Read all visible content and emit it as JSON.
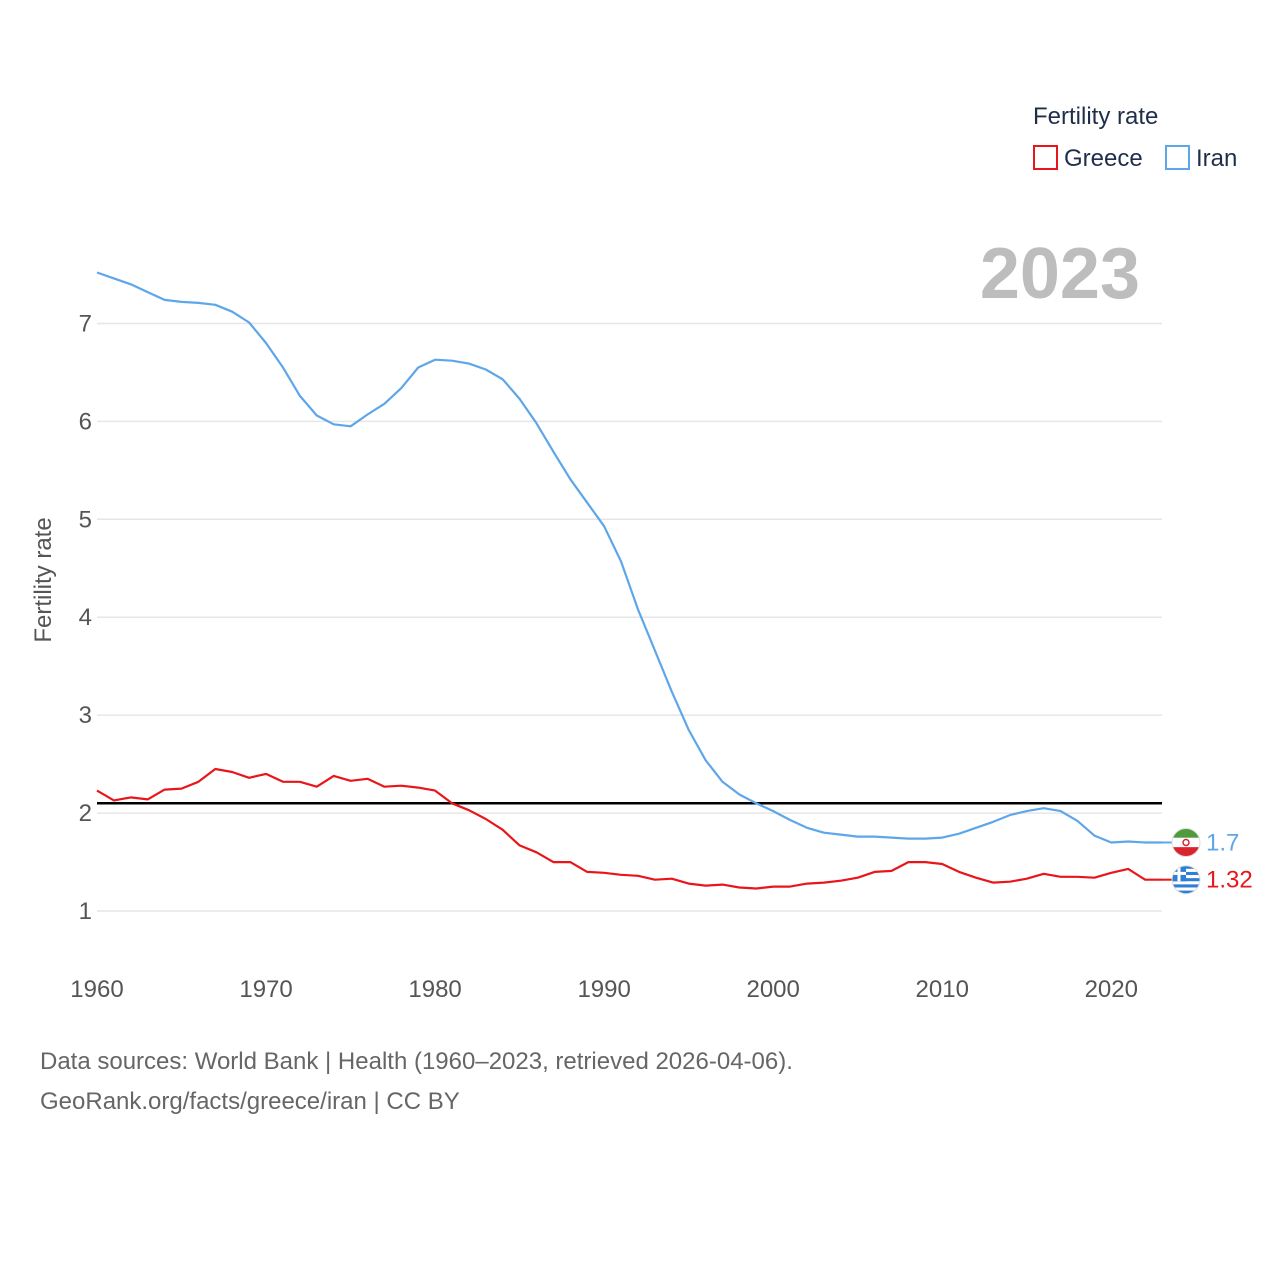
{
  "chart_data": {
    "type": "line",
    "title": "",
    "legend_title": "Fertility rate",
    "legend_position": "top-right",
    "ylabel": "Fertility rate",
    "xlabel": "",
    "year_label": "2023",
    "xlim": [
      1960,
      2023
    ],
    "ylim": [
      0.5,
      7.75
    ],
    "x_ticks": [
      1960,
      1970,
      1980,
      1990,
      2000,
      2010,
      2020
    ],
    "y_ticks": [
      1,
      2,
      3,
      4,
      5,
      6,
      7
    ],
    "grid": true,
    "reference_line": {
      "value": 2.1,
      "color": "#000000"
    },
    "series": [
      {
        "name": "Greece",
        "color": "#e8161b",
        "end_label": "1.32",
        "flag": "greece-flag",
        "x": [
          1960,
          1961,
          1962,
          1963,
          1964,
          1965,
          1966,
          1967,
          1968,
          1969,
          1970,
          1971,
          1972,
          1973,
          1974,
          1975,
          1976,
          1977,
          1978,
          1979,
          1980,
          1981,
          1982,
          1983,
          1984,
          1985,
          1986,
          1987,
          1988,
          1989,
          1990,
          1991,
          1992,
          1993,
          1994,
          1995,
          1996,
          1997,
          1998,
          1999,
          2000,
          2001,
          2002,
          2003,
          2004,
          2005,
          2006,
          2007,
          2008,
          2009,
          2010,
          2011,
          2012,
          2013,
          2014,
          2015,
          2016,
          2017,
          2018,
          2019,
          2020,
          2021,
          2022,
          2023
        ],
        "values": [
          2.23,
          2.13,
          2.16,
          2.14,
          2.24,
          2.25,
          2.32,
          2.45,
          2.42,
          2.36,
          2.4,
          2.32,
          2.32,
          2.27,
          2.38,
          2.33,
          2.35,
          2.27,
          2.28,
          2.26,
          2.23,
          2.1,
          2.03,
          1.94,
          1.83,
          1.67,
          1.6,
          1.5,
          1.5,
          1.4,
          1.39,
          1.37,
          1.36,
          1.32,
          1.33,
          1.28,
          1.26,
          1.27,
          1.24,
          1.23,
          1.25,
          1.25,
          1.28,
          1.29,
          1.31,
          1.34,
          1.4,
          1.41,
          1.5,
          1.5,
          1.48,
          1.4,
          1.34,
          1.29,
          1.3,
          1.33,
          1.38,
          1.35,
          1.35,
          1.34,
          1.39,
          1.43,
          1.32,
          1.32
        ]
      },
      {
        "name": "Iran",
        "color": "#5ea6ea",
        "end_label": "1.7",
        "flag": "iran-flag",
        "x": [
          1960,
          1961,
          1962,
          1963,
          1964,
          1965,
          1966,
          1967,
          1968,
          1969,
          1970,
          1971,
          1972,
          1973,
          1974,
          1975,
          1976,
          1977,
          1978,
          1979,
          1980,
          1981,
          1982,
          1983,
          1984,
          1985,
          1986,
          1987,
          1988,
          1989,
          1990,
          1991,
          1992,
          1993,
          1994,
          1995,
          1996,
          1997,
          1998,
          1999,
          2000,
          2001,
          2002,
          2003,
          2004,
          2005,
          2006,
          2007,
          2008,
          2009,
          2010,
          2011,
          2012,
          2013,
          2014,
          2015,
          2016,
          2017,
          2018,
          2019,
          2020,
          2021,
          2022,
          2023
        ],
        "values": [
          7.52,
          7.46,
          7.4,
          7.32,
          7.24,
          7.22,
          7.21,
          7.19,
          7.12,
          7.01,
          6.8,
          6.55,
          6.26,
          6.06,
          5.97,
          5.95,
          6.07,
          6.18,
          6.34,
          6.55,
          6.63,
          6.62,
          6.59,
          6.53,
          6.43,
          6.23,
          5.98,
          5.69,
          5.41,
          5.17,
          4.93,
          4.57,
          4.08,
          3.66,
          3.24,
          2.85,
          2.54,
          2.32,
          2.19,
          2.1,
          2.02,
          1.93,
          1.85,
          1.8,
          1.78,
          1.76,
          1.76,
          1.75,
          1.74,
          1.74,
          1.75,
          1.79,
          1.85,
          1.91,
          1.98,
          2.02,
          2.05,
          2.02,
          1.92,
          1.77,
          1.7,
          1.71,
          1.7,
          1.7
        ]
      }
    ]
  },
  "footer": {
    "line1": "Data sources: World Bank | Health (1960–2023, retrieved 2026-04-06).",
    "line2": "GeoRank.org/facts/greece/iran | CC BY"
  }
}
